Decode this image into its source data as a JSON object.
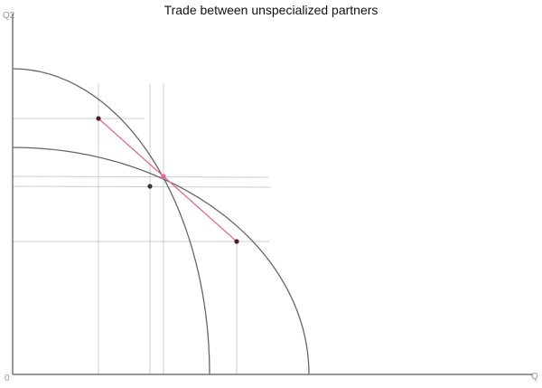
{
  "title": "Trade between unspecialized partners",
  "axes": {
    "y_label": "Q2",
    "x_label": "Q",
    "origin_label": "0"
  },
  "colors": {
    "axis": "#777777",
    "curve": "#666666",
    "grid": "#cccccc",
    "trade_line": "#e8669a",
    "point": "#442233"
  }
}
